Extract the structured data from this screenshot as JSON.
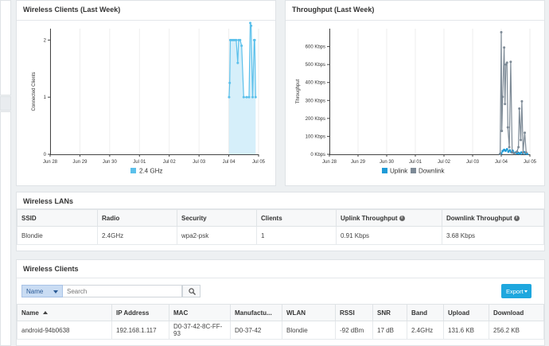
{
  "clients_chart": {
    "title": "Wireless Clients (Last Week)",
    "ylabel": "Connected Clients",
    "x_ticks": [
      "Jun 28",
      "Jun 29",
      "Jun 30",
      "Jul 01",
      "Jul 02",
      "Jul 03",
      "Jul 04",
      "Jul 05"
    ],
    "y_ticks": [
      "0",
      "1",
      "2"
    ],
    "legend_label": "2.4 GHz",
    "color": "#5bc0eb"
  },
  "throughput_chart": {
    "title": "Throughput (Last Week)",
    "ylabel": "Throughput",
    "x_ticks": [
      "Jun 28",
      "Jun 29",
      "Jun 30",
      "Jul 01",
      "Jul 02",
      "Jul 03",
      "Jul 04",
      "Jul 05"
    ],
    "y_ticks": [
      "0 Kbps",
      "100 Kbps",
      "200 Kbps",
      "300 Kbps",
      "400 Kbps",
      "500 Kbps",
      "600 Kbps"
    ],
    "legend_uplink": "Uplink",
    "legend_downlink": "Downlink",
    "uplink_color": "#1e9bd7",
    "downlink_color": "#7d8a96"
  },
  "chart_data": [
    {
      "type": "area",
      "title": "Wireless Clients (Last Week)",
      "ylabel": "Connected Clients",
      "x_range": [
        "Jun 28",
        "Jul 05"
      ],
      "ylim": [
        0,
        2.2
      ],
      "series": [
        {
          "name": "2.4 GHz",
          "points": [
            [
              6.01,
              1.0
            ],
            [
              6.03,
              1.25
            ],
            [
              6.05,
              2.0
            ],
            [
              6.1,
              2.0
            ],
            [
              6.15,
              2.0
            ],
            [
              6.2,
              2.0
            ],
            [
              6.25,
              2.0
            ],
            [
              6.3,
              1.6
            ],
            [
              6.33,
              2.0
            ],
            [
              6.38,
              2.0
            ],
            [
              6.43,
              1.9
            ],
            [
              6.5,
              1.0
            ],
            [
              6.6,
              1.0
            ],
            [
              6.68,
              1.0
            ],
            [
              6.72,
              2.3
            ],
            [
              6.75,
              2.25
            ],
            [
              6.8,
              1.0
            ],
            [
              6.85,
              2.0
            ],
            [
              6.87,
              2.0
            ],
            [
              6.9,
              1.0
            ]
          ]
        }
      ]
    },
    {
      "type": "line",
      "title": "Throughput (Last Week)",
      "ylabel": "Throughput",
      "x_range": [
        "Jun 28",
        "Jul 05"
      ],
      "ylim": [
        0,
        700
      ],
      "series": [
        {
          "name": "Uplink",
          "points": [
            [
              5.96,
              2
            ],
            [
              6.0,
              5
            ],
            [
              6.05,
              18
            ],
            [
              6.1,
              25
            ],
            [
              6.15,
              20
            ],
            [
              6.2,
              28
            ],
            [
              6.25,
              15
            ],
            [
              6.3,
              22
            ],
            [
              6.35,
              12
            ],
            [
              6.4,
              20
            ],
            [
              6.45,
              8
            ],
            [
              6.5,
              10
            ],
            [
              6.55,
              5
            ],
            [
              6.6,
              8
            ],
            [
              6.65,
              4
            ],
            [
              6.7,
              10
            ],
            [
              6.75,
              6
            ],
            [
              6.8,
              12
            ],
            [
              6.85,
              5
            ],
            [
              6.9,
              3
            ]
          ]
        },
        {
          "name": "Downlink",
          "points": [
            [
              5.96,
              3
            ],
            [
              6.0,
              680
            ],
            [
              6.02,
              130
            ],
            [
              6.05,
              320
            ],
            [
              6.1,
              595
            ],
            [
              6.13,
              280
            ],
            [
              6.16,
              500
            ],
            [
              6.2,
              510
            ],
            [
              6.23,
              150
            ],
            [
              6.28,
              40
            ],
            [
              6.33,
              515
            ],
            [
              6.38,
              10
            ],
            [
              6.45,
              5
            ],
            [
              6.55,
              15
            ],
            [
              6.6,
              40
            ],
            [
              6.63,
              255
            ],
            [
              6.68,
              80
            ],
            [
              6.72,
              295
            ],
            [
              6.76,
              10
            ],
            [
              6.82,
              120
            ],
            [
              6.87,
              10
            ]
          ]
        }
      ]
    }
  ],
  "wireless_lans": {
    "title": "Wireless LANs",
    "columns": [
      "SSID",
      "Radio",
      "Security",
      "Clients",
      "Uplink Throughput",
      "Downlink Throughput"
    ],
    "info_icon": "info-circle-icon",
    "rows": [
      [
        "Blondie",
        "2.4GHz",
        "wpa2-psk",
        "1",
        "0.91 Kbps",
        "3.68 Kbps"
      ]
    ]
  },
  "wireless_clients": {
    "title": "Wireless Clients",
    "filter_select": "Name",
    "search_placeholder": "Search",
    "export_label": "Export",
    "sort_icon": "sort-up-icon",
    "columns": [
      "Name",
      "IP Address",
      "MAC",
      "Manufactu...",
      "WLAN",
      "RSSI",
      "SNR",
      "Band",
      "Upload",
      "Download"
    ],
    "rows": [
      [
        "android-94b0638",
        "192.168.1.117",
        "D0-37-42-8C-FF-93",
        "D0-37-42",
        "Blondie",
        "-92 dBm",
        "17 dB",
        "2.4GHz",
        "131.6 KB",
        "256.2 KB"
      ]
    ]
  }
}
